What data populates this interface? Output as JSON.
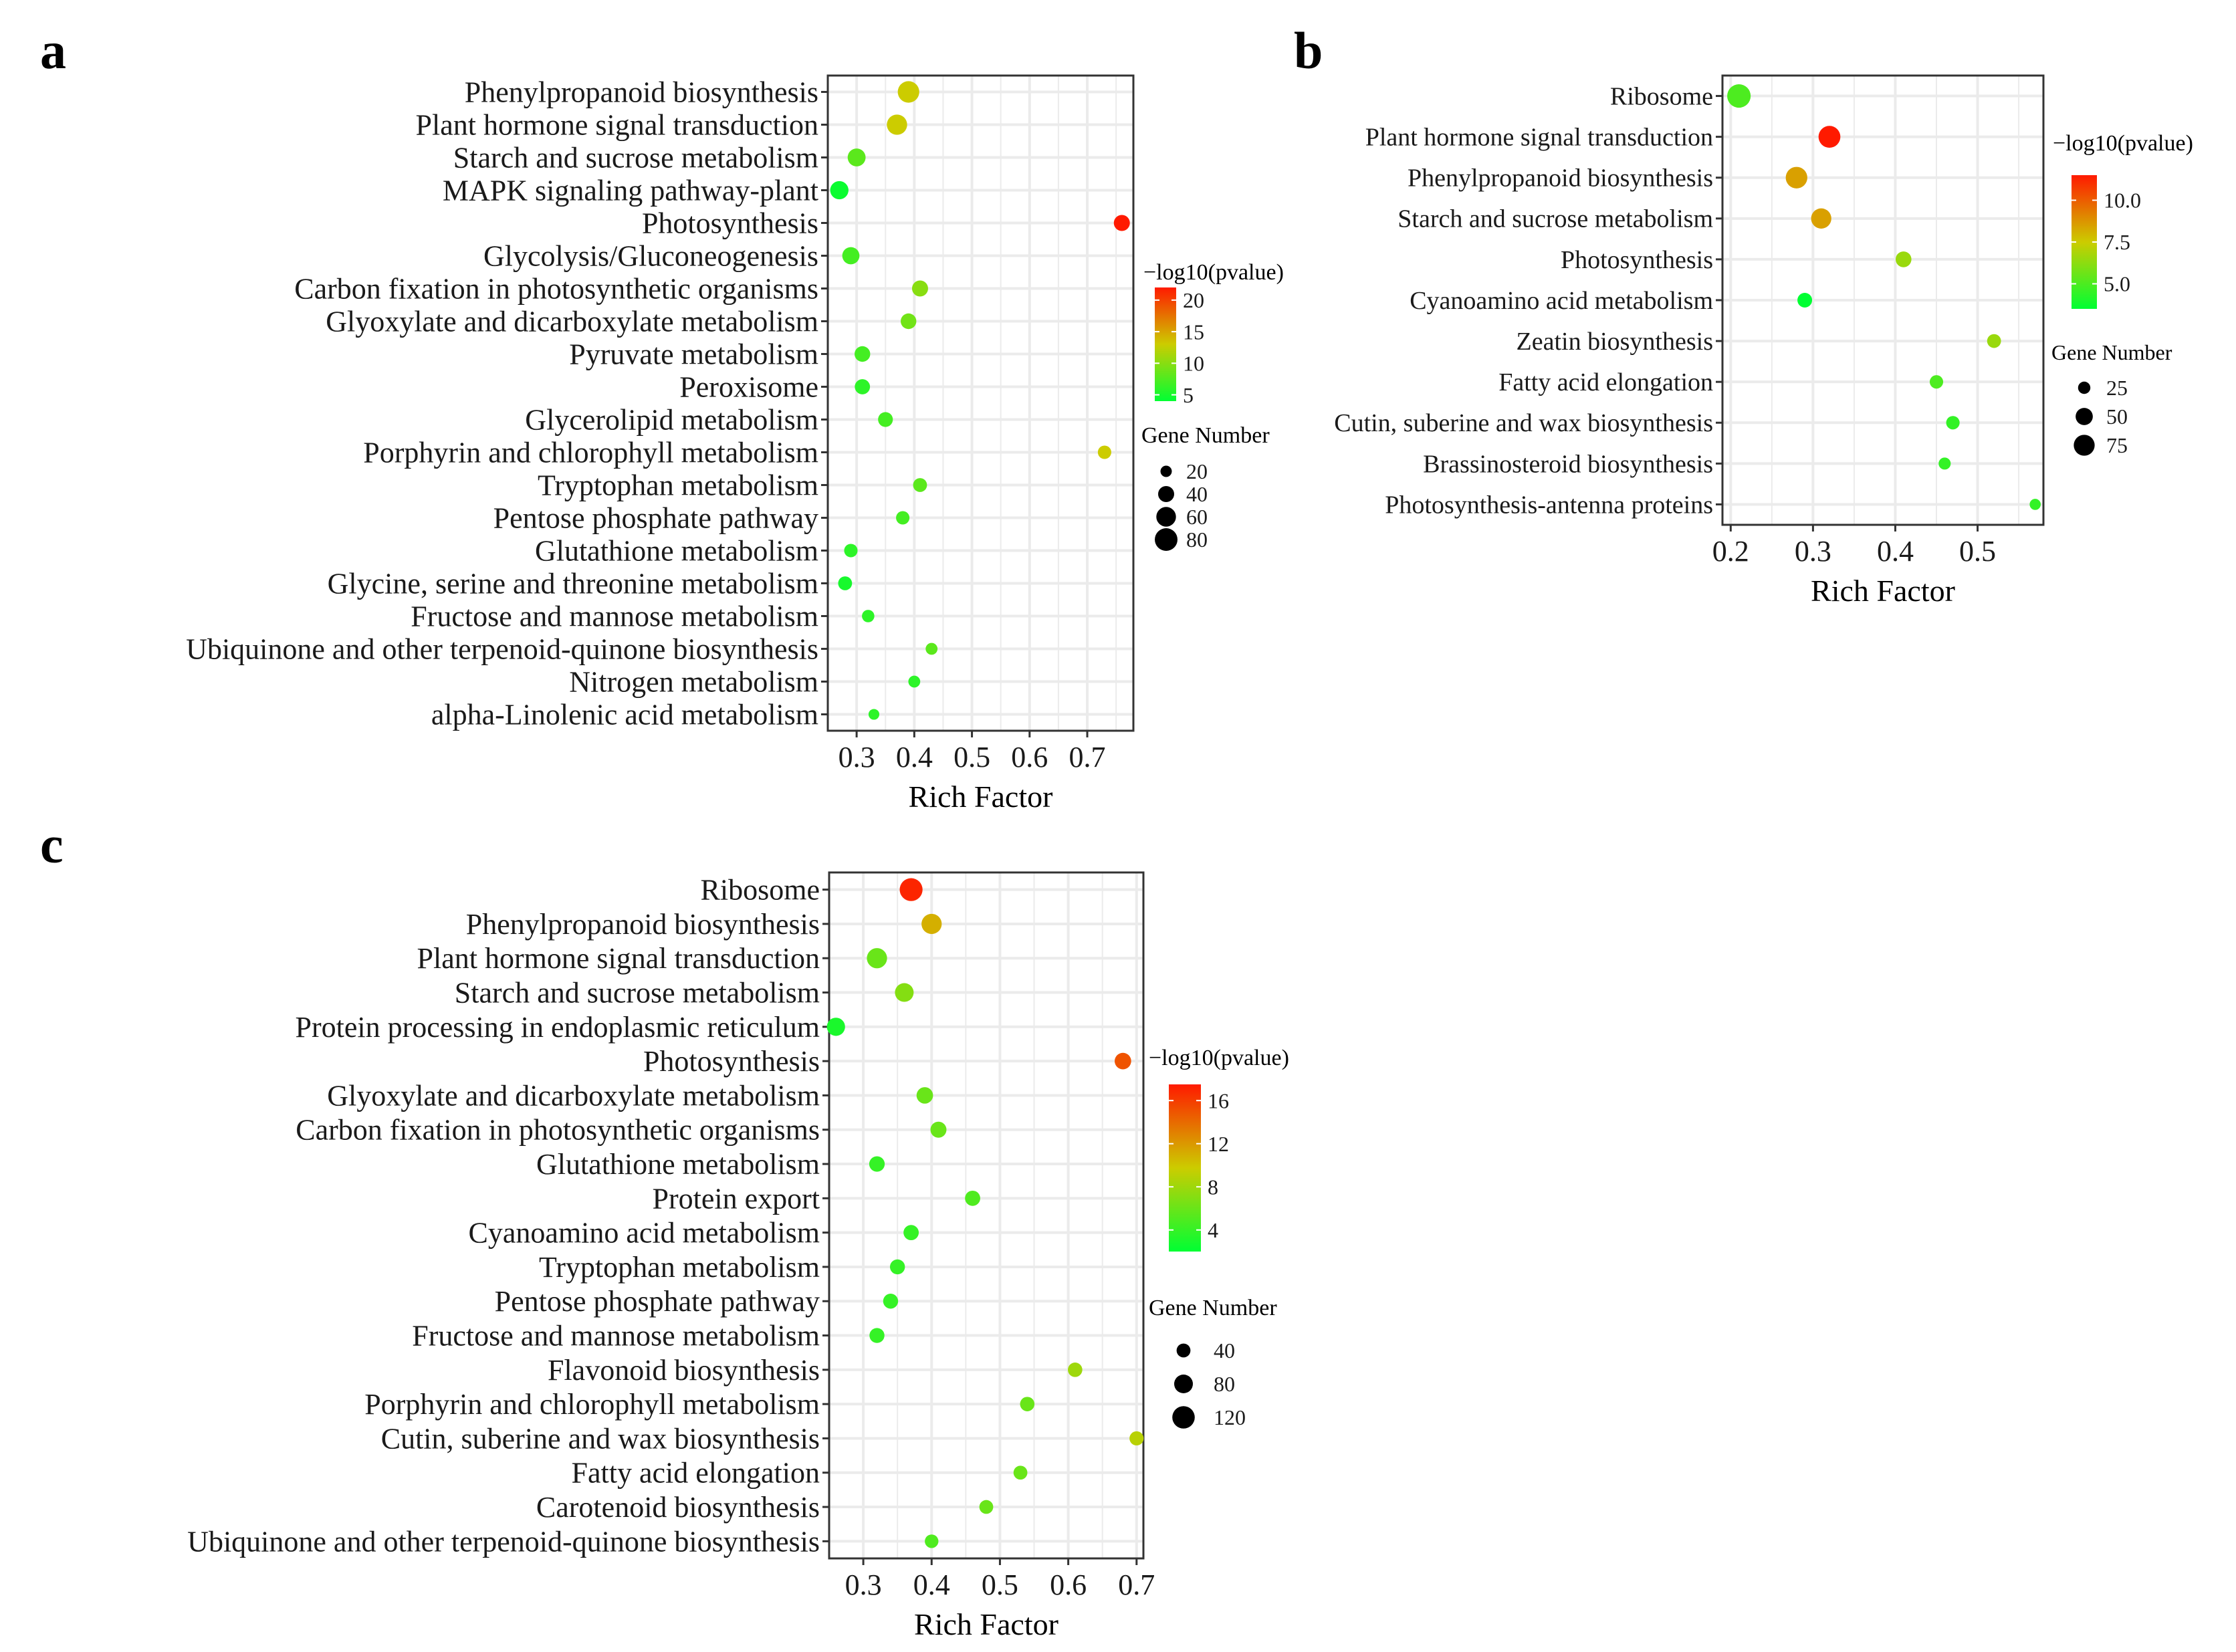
{
  "figure": {
    "panel_labels": [
      "a",
      "b",
      "c"
    ]
  },
  "chart_data": [
    {
      "type": "scatter",
      "panel": "a",
      "title": "",
      "xlabel": "Rich Factor",
      "ylabel": "",
      "xlim": [
        0.25,
        0.78
      ],
      "xticks": [
        0.3,
        0.4,
        0.5,
        0.6,
        0.7
      ],
      "xtick_labels": [
        "0.3",
        "0.4",
        "0.5",
        "0.6",
        "0.7"
      ],
      "grid": true,
      "color_title": "−log10(pvalue)",
      "color_range": [
        4,
        22
      ],
      "color_ticks": [
        5,
        10,
        15,
        20
      ],
      "color_tick_labels": [
        "5",
        "10",
        "15",
        "20"
      ],
      "size_title": "Gene Number",
      "size_range": [
        10,
        90
      ],
      "size_legend": [
        20,
        40,
        60,
        80
      ],
      "size_legend_labels": [
        "20",
        "40",
        "60",
        "80"
      ],
      "categories": [
        "Phenylpropanoid biosynthesis",
        "Plant hormone signal transduction",
        "Starch and sucrose metabolism",
        "MAPK signaling pathway-plant",
        "Photosynthesis",
        "Glycolysis/Gluconeogenesis",
        "Carbon fixation in photosynthetic organisms",
        "Glyoxylate and dicarboxylate metabolism",
        "Pyruvate metabolism",
        "Peroxisome",
        "Glycerolipid metabolism",
        "Porphyrin and chlorophyll metabolism",
        "Tryptophan metabolism",
        "Pentose phosphate pathway",
        "Glutathione metabolism",
        "Glycine, serine and threonine metabolism",
        "Fructose and mannose metabolism",
        "Ubiquinone and other terpenoid-quinone biosynthesis",
        "Nitrogen metabolism",
        "alpha-Linolenic acid metabolism"
      ],
      "x": [
        0.39,
        0.37,
        0.3,
        0.27,
        0.76,
        0.29,
        0.41,
        0.39,
        0.31,
        0.31,
        0.35,
        0.73,
        0.41,
        0.38,
        0.29,
        0.28,
        0.32,
        0.43,
        0.4,
        0.33
      ],
      "color": [
        13,
        13,
        8,
        4.5,
        22,
        7,
        10,
        9,
        7,
        6,
        7,
        13,
        8,
        7,
        6,
        5,
        6,
        8,
        6,
        6
      ],
      "size": [
        72,
        64,
        50,
        52,
        40,
        46,
        40,
        38,
        38,
        36,
        34,
        28,
        30,
        28,
        28,
        30,
        24,
        22,
        22,
        18
      ]
    },
    {
      "type": "scatter",
      "panel": "b",
      "title": "",
      "xlabel": "Rich Factor",
      "ylabel": "",
      "xlim": [
        0.19,
        0.58
      ],
      "xticks": [
        0.2,
        0.3,
        0.4,
        0.5
      ],
      "xtick_labels": [
        "0.2",
        "0.3",
        "0.4",
        "0.5"
      ],
      "grid": true,
      "color_title": "−log10(pvalue)",
      "color_range": [
        3.5,
        11.5
      ],
      "color_ticks": [
        5,
        7.5,
        10
      ],
      "color_tick_labels": [
        "5.0",
        "7.5",
        "10.0"
      ],
      "size_title": "Gene Number",
      "size_range": [
        10,
        100
      ],
      "size_legend": [
        25,
        50,
        75
      ],
      "size_legend_labels": [
        "25",
        "50",
        "75"
      ],
      "categories": [
        "Ribosome",
        "Plant hormone signal transduction",
        "Phenylpropanoid biosynthesis",
        "Starch and sucrose metabolism",
        "Photosynthesis",
        "Cyanoamino acid metabolism",
        "Zeatin biosynthesis",
        "Fatty acid elongation",
        "Cutin, suberine and wax biosynthesis",
        "Brassinosteroid biosynthesis",
        "Photosynthesis-antenna proteins"
      ],
      "x": [
        0.21,
        0.32,
        0.28,
        0.31,
        0.41,
        0.29,
        0.52,
        0.45,
        0.47,
        0.46,
        0.57
      ],
      "color": [
        5,
        11.5,
        8.5,
        8.5,
        6.5,
        3.5,
        6.5,
        5,
        4.5,
        4.5,
        4.5
      ],
      "size": [
        95,
        82,
        80,
        70,
        42,
        36,
        32,
        30,
        30,
        24,
        20
      ]
    },
    {
      "type": "scatter",
      "panel": "c",
      "title": "",
      "xlabel": "Rich Factor",
      "ylabel": "",
      "xlim": [
        0.25,
        0.71
      ],
      "xticks": [
        0.3,
        0.4,
        0.5,
        0.6,
        0.7
      ],
      "xtick_labels": [
        "0.3",
        "0.4",
        "0.5",
        "0.6",
        "0.7"
      ],
      "grid": true,
      "color_title": "−log10(pvalue)",
      "color_range": [
        2,
        17.5
      ],
      "color_ticks": [
        4,
        8,
        12,
        16
      ],
      "color_tick_labels": [
        "4",
        "8",
        "12",
        "16"
      ],
      "size_title": "Gene Number",
      "size_range": [
        10,
        140
      ],
      "size_legend": [
        40,
        80,
        120
      ],
      "size_legend_labels": [
        "40",
        "80",
        "120"
      ],
      "categories": [
        "Ribosome",
        "Phenylpropanoid biosynthesis",
        "Plant hormone signal transduction",
        "Starch and sucrose metabolism",
        "Protein processing in endoplasmic reticulum",
        "Photosynthesis",
        "Glyoxylate and dicarboxylate metabolism",
        "Carbon fixation in photosynthetic organisms",
        "Glutathione metabolism",
        "Protein export",
        "Cyanoamino acid metabolism",
        "Tryptophan metabolism",
        "Pentose phosphate pathway",
        "Fructose and mannose metabolism",
        "Flavonoid biosynthesis",
        "Porphyrin and chlorophyll metabolism",
        "Cutin, suberine and wax biosynthesis",
        "Fatty acid elongation",
        "Carotenoid biosynthesis",
        "Ubiquinone and other terpenoid-quinone biosynthesis"
      ],
      "x": [
        0.37,
        0.4,
        0.32,
        0.36,
        0.26,
        0.68,
        0.39,
        0.41,
        0.32,
        0.46,
        0.37,
        0.35,
        0.34,
        0.32,
        0.61,
        0.54,
        0.7,
        0.53,
        0.48,
        0.4
      ],
      "color": [
        17,
        11,
        6,
        7,
        3,
        15,
        6,
        6,
        4,
        5,
        4,
        4,
        4,
        4,
        8,
        6,
        9,
        6,
        6,
        5
      ],
      "size": [
        125,
        95,
        95,
        80,
        75,
        60,
        60,
        56,
        52,
        50,
        50,
        48,
        48,
        48,
        44,
        44,
        42,
        40,
        40,
        38
      ]
    }
  ]
}
